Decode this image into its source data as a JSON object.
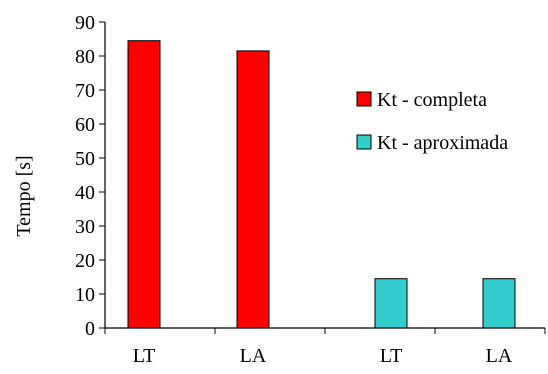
{
  "chart_data": {
    "type": "bar",
    "title": "",
    "xlabel": "",
    "ylabel": "Tempo [s]",
    "ylim": [
      0,
      90
    ],
    "yticks": [
      0,
      10,
      20,
      30,
      40,
      50,
      60,
      70,
      80,
      90
    ],
    "categories": [
      "LT",
      "LA",
      "LT",
      "LA"
    ],
    "series": [
      {
        "name": "Kt - completa",
        "color": "#ff0000",
        "values": [
          84.5,
          81.5,
          null,
          null
        ]
      },
      {
        "name": "Kt - aproximada",
        "color": "#33cccc",
        "values": [
          null,
          null,
          14.5,
          14.5
        ]
      }
    ],
    "grid": false,
    "legend_position": "right"
  }
}
